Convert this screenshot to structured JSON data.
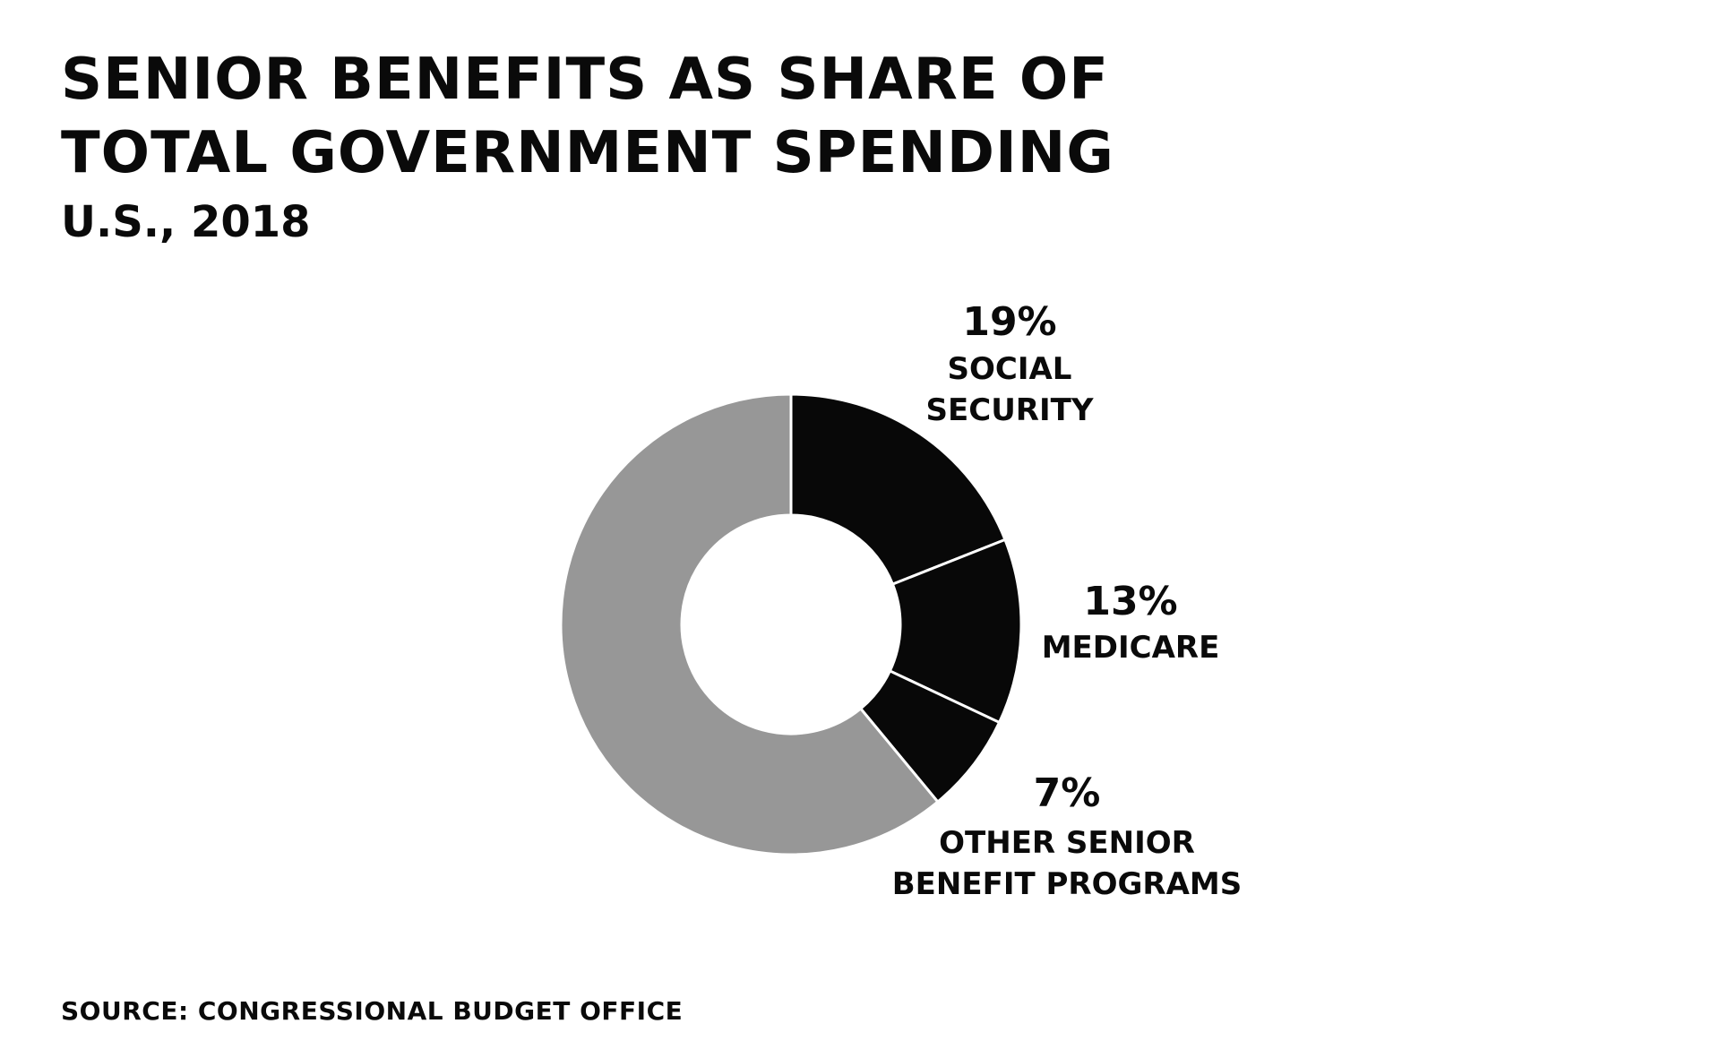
{
  "chart_data": {
    "type": "pie",
    "title": "SENIOR BENEFITS AS SHARE OF TOTAL GOVERNMENT SPENDING",
    "subtitle": "U.S., 2018",
    "source": "SOURCE: CONGRESSIONAL BUDGET OFFICE",
    "donut": true,
    "slices": [
      {
        "name_lines": [
          "SOCIAL",
          "SECURITY"
        ],
        "value": 19,
        "value_label": "19%",
        "color": "#080808"
      },
      {
        "name_lines": [
          "MEDICARE"
        ],
        "value": 13,
        "value_label": "13%",
        "color": "#080808"
      },
      {
        "name_lines": [
          "OTHER SENIOR",
          "BENEFIT PROGRAMS"
        ],
        "value": 7,
        "value_label": "7%",
        "color": "#080808"
      },
      {
        "name_lines": [],
        "value": 61,
        "value_label": "",
        "color": "#979797"
      }
    ],
    "slice_border_color": "#ffffff"
  }
}
